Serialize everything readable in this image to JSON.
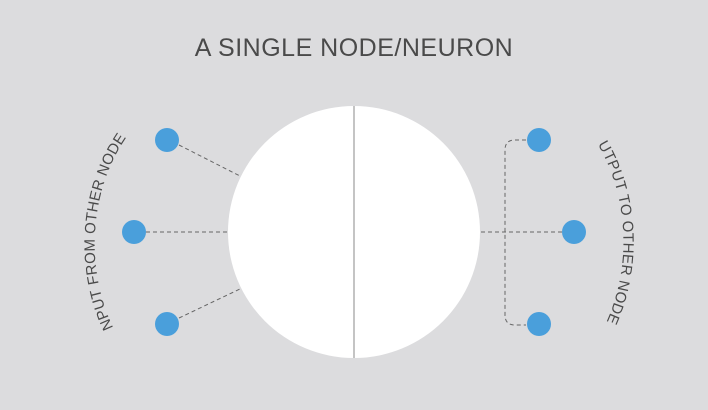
{
  "title": "A SINGLE NODE/NEURON",
  "labels": {
    "input": "INPUT FROM OTHER NODES",
    "output": "OUTPUT TO OTHER NODES"
  },
  "colors": {
    "background": "#dcdcde",
    "node": "#4a9fdb",
    "neuron": "#ffffff",
    "connector": "#666666",
    "text": "#4a4a4a"
  },
  "nodes": {
    "input_count": 3,
    "output_count": 3
  }
}
